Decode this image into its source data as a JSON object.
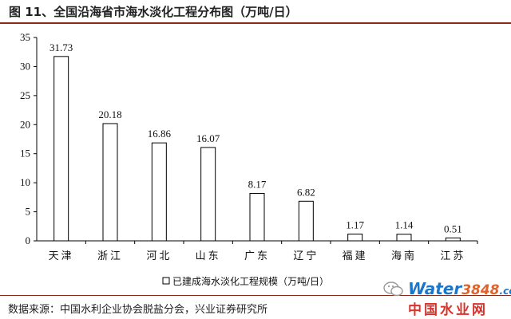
{
  "figure": {
    "title": "图 11、全国沿海省市海水淡化工程分布图（万吨/日）",
    "source": "数据来源：中国水利企业协会脱盐分会，兴业证券研究所"
  },
  "watermark": {
    "latin": "Water",
    "digits": "3848",
    "suffix": ".com",
    "cn": "中国水业网",
    "icon": "wechat-icon"
  },
  "chart_data": {
    "type": "bar",
    "categories": [
      "天津",
      "浙江",
      "河北",
      "山东",
      "广东",
      "辽宁",
      "福建",
      "海南",
      "江苏"
    ],
    "values": [
      31.73,
      20.18,
      16.86,
      16.07,
      8.17,
      6.82,
      1.17,
      1.14,
      0.51
    ],
    "data_labels": [
      "31.73",
      "20.18",
      "16.86",
      "16.07",
      "8.17",
      "6.82",
      "1.17",
      "1.14",
      "0.51"
    ],
    "series": [
      {
        "name": "已建成海水淡化工程规模（万吨/日）",
        "values": [
          31.73,
          20.18,
          16.86,
          16.07,
          8.17,
          6.82,
          1.17,
          1.14,
          0.51
        ]
      }
    ],
    "ylim": [
      0,
      35
    ],
    "yticks": [
      0,
      5,
      10,
      15,
      20,
      25,
      30,
      35
    ],
    "ytick_labels": [
      "0",
      "5",
      "10",
      "15",
      "20",
      "25",
      "30",
      "35"
    ],
    "xlabel": "",
    "ylabel": "",
    "grid": false,
    "legend_position": "bottom-center",
    "colors": {
      "bar_fill": "#ffffff",
      "bar_stroke": "#000000",
      "axis": "#000000"
    }
  }
}
